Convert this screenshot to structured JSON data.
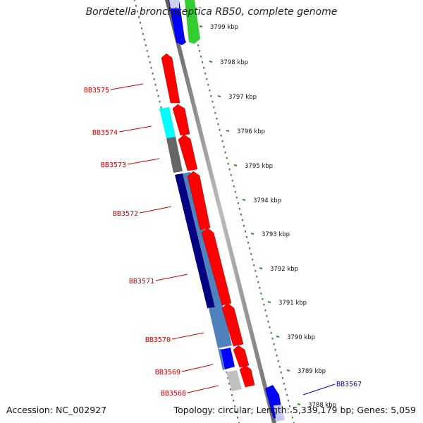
{
  "title": "Bordetella bronchiseptica RB50, complete genome",
  "accession": "Accession: NC_002927",
  "topology": "Topology: circular; Length: 5,339,179 bp; Genes: 5,059",
  "scale_ticks": [
    {
      "label": "3799 kbp"
    },
    {
      "label": "3798 kbp"
    },
    {
      "label": "3797 kbp"
    },
    {
      "label": "3796 kbp"
    },
    {
      "label": "3795 kbp"
    },
    {
      "label": "3794 kbp"
    },
    {
      "label": "3793 kbp"
    },
    {
      "label": "3792 kbp"
    },
    {
      "label": "3791 kbp"
    },
    {
      "label": "3790 kbp"
    },
    {
      "label": "3789 kbp"
    },
    {
      "label": "3788 kbp"
    }
  ],
  "gene_labels": [
    {
      "name": "BB3575",
      "color": "#cc0000"
    },
    {
      "name": "BB3574",
      "color": "#cc0000"
    },
    {
      "name": "BB3573",
      "color": "#cc0000"
    },
    {
      "name": "BB3572",
      "color": "#cc0000"
    },
    {
      "name": "BB3571",
      "color": "#cc0000"
    },
    {
      "name": "BB3570",
      "color": "#cc0000"
    },
    {
      "name": "BB3569",
      "color": "#cc0000"
    },
    {
      "name": "BB3568",
      "color": "#cc0000"
    },
    {
      "name": "BB3567",
      "color": "#0000cc"
    }
  ],
  "colors": {
    "backbone": "#8c8c8c",
    "dots": "#2e8b2e",
    "gene_red": "#ff0000",
    "gene_blue": "#0000ff",
    "gene_green": "#33cc33",
    "gene_cyan": "#00ffff",
    "gene_darkgray": "#666666",
    "gene_navy": "#000080",
    "gene_steelblue": "#4f81bd",
    "gene_lightgray": "#c0c0c0"
  }
}
